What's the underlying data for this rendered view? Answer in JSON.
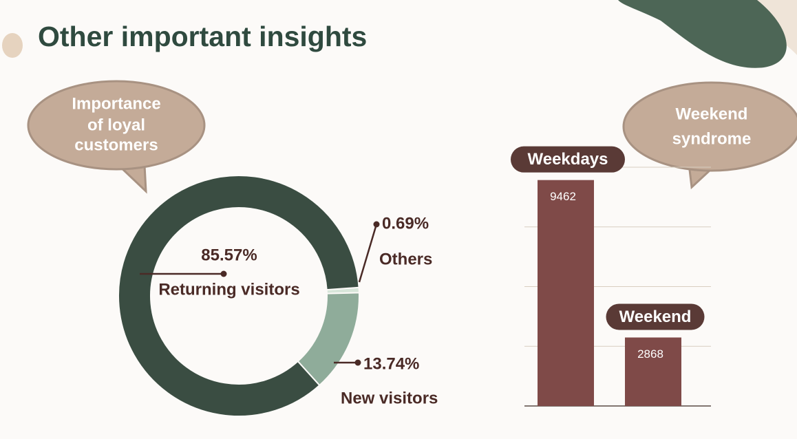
{
  "title": "Other important insights",
  "callouts": [
    {
      "lines": [
        "Importance",
        "of loyal",
        "customers"
      ]
    },
    {
      "lines": [
        "Weekend",
        "syndrome"
      ]
    }
  ],
  "chart_data": [
    {
      "type": "pie",
      "categories": [
        "Returning visitors",
        "New visitors",
        "Others"
      ],
      "values": [
        85.57,
        13.74,
        0.69
      ],
      "value_labels": [
        "85.57%",
        "13.74%",
        "0.69%"
      ],
      "colors": [
        "#3a4d42",
        "#8fac9a",
        "#d8e6da"
      ]
    },
    {
      "type": "bar",
      "categories": [
        "Weekdays",
        "Weekend"
      ],
      "values": [
        9462,
        2868
      ],
      "color": "#7f4a48",
      "ylim": [
        0,
        10000
      ],
      "yticks": [
        0,
        2500,
        5000,
        7500,
        10000
      ],
      "grid": true
    }
  ]
}
